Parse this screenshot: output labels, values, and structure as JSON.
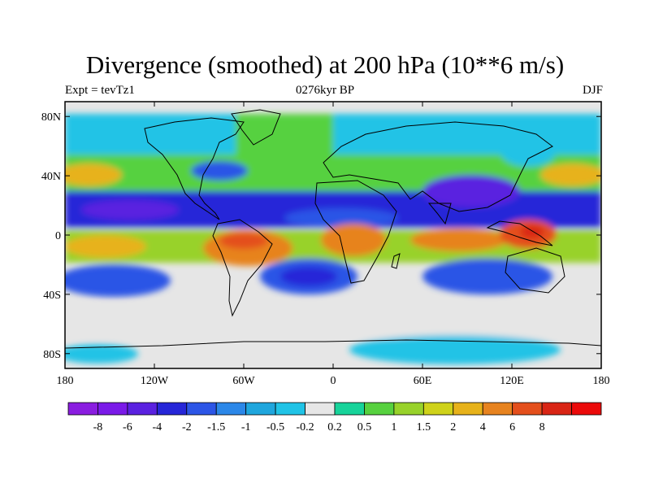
{
  "title": "Divergence (smoothed) at 200 hPa (10**6 m/s)",
  "subtitle_left": "Expt = tevTz1",
  "subtitle_center": "0276kyr BP",
  "subtitle_right": "DJF",
  "map": {
    "lon_range": [
      -180,
      180
    ],
    "lat_range": [
      -90,
      90
    ],
    "x_ticks": [
      {
        "lon": -180,
        "label": "180"
      },
      {
        "lon": -120,
        "label": "120W"
      },
      {
        "lon": -60,
        "label": "60W"
      },
      {
        "lon": 0,
        "label": "0"
      },
      {
        "lon": 60,
        "label": "60E"
      },
      {
        "lon": 120,
        "label": "120E"
      },
      {
        "lon": 180,
        "label": "180"
      }
    ],
    "y_ticks": [
      {
        "lat": 80,
        "label": "80N"
      },
      {
        "lat": 40,
        "label": "40N"
      },
      {
        "lat": 0,
        "label": "0"
      },
      {
        "lat": -40,
        "label": "40S"
      },
      {
        "lat": -80,
        "label": "80S"
      }
    ]
  },
  "colorbar": {
    "colors": [
      "#8a1de0",
      "#7a1ae8",
      "#5a21e0",
      "#2626d8",
      "#2c55e6",
      "#2b87e8",
      "#1fa6dd",
      "#20c3e6",
      "#e6e6e6",
      "#17d39a",
      "#57d13f",
      "#98d22a",
      "#cfd21a",
      "#e7b21a",
      "#e7831f",
      "#e44f1c",
      "#d92515",
      "#eb0a0a"
    ],
    "labels": [
      "-8",
      "-6",
      "-4",
      "-2",
      "-1.5",
      "-1",
      "-0.5",
      "-0.2",
      "0.2",
      "0.5",
      "1",
      "1.5",
      "2",
      "4",
      "6",
      "8"
    ]
  }
}
